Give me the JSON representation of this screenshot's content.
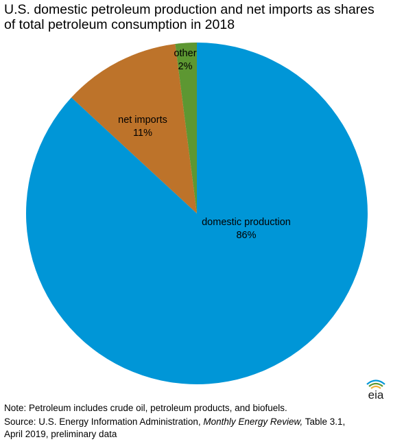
{
  "chart_data": {
    "type": "pie",
    "title_lines": [
      "U.S. domestic petroleum production and net imports as shares",
      "of total petroleum consumption in 2018"
    ],
    "slices": [
      {
        "name": "domestic production",
        "value": 86,
        "label": "86%",
        "color": "#0096d7"
      },
      {
        "name": "net imports",
        "value": 11,
        "label": "11%",
        "color": "#bd732a"
      },
      {
        "name": "other",
        "value": 2,
        "label": "2%",
        "color": "#5d9732"
      }
    ],
    "start_angle_deg": 0,
    "direction": "clockwise"
  },
  "notes": {
    "line1": "Note: Petroleum includes crude oil, petroleum products, and biofuels.",
    "line2_prefix": "Source: U.S. Energy Information Administration, ",
    "line2_italic": "Monthly Energy Review,",
    "line2_suffix": " Table 3.1,",
    "line3": "April 2019, preliminary data"
  },
  "logo": {
    "text": "eia"
  }
}
